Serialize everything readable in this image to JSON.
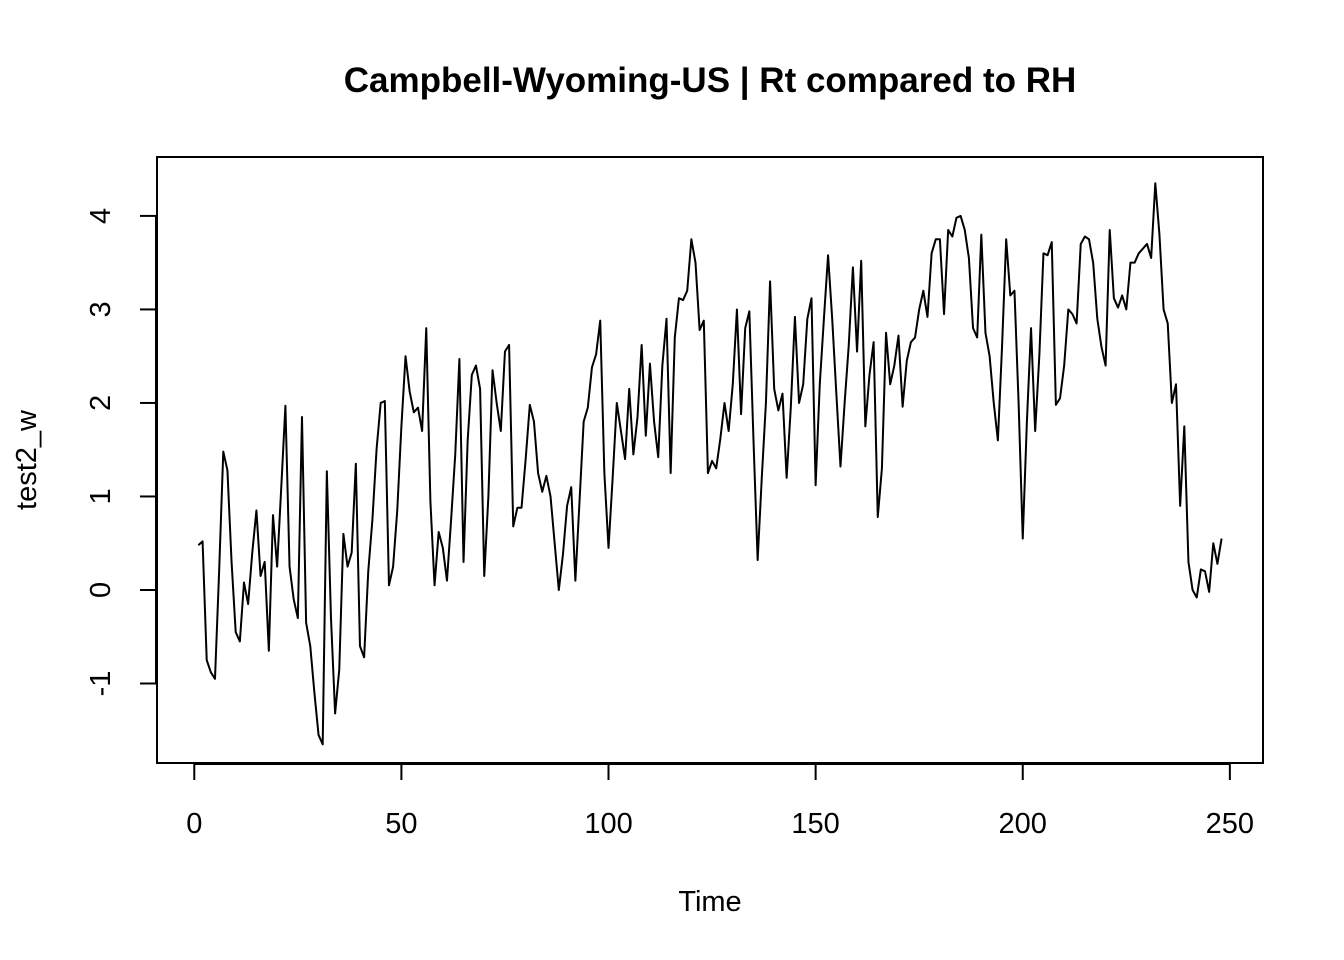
{
  "chart_data": {
    "type": "line",
    "title": "Campbell-Wyoming-US | Rt compared to RH",
    "xlabel": "Time",
    "ylabel": "test2_w",
    "xlim": [
      -9,
      258
    ],
    "ylim": [
      -1.85,
      4.63
    ],
    "xticks": [
      0,
      50,
      100,
      150,
      200,
      250
    ],
    "yticks": [
      -1,
      0,
      1,
      2,
      3,
      4
    ],
    "grid": false,
    "series": [
      {
        "x_start": 1,
        "values": [
          0.48,
          0.52,
          -0.75,
          -0.88,
          -0.95,
          0.2,
          1.48,
          1.28,
          0.3,
          -0.45,
          -0.55,
          0.08,
          -0.15,
          0.4,
          0.85,
          0.15,
          0.3,
          -0.65,
          0.8,
          0.25,
          1.1,
          1.97,
          0.25,
          -0.1,
          -0.3,
          1.85,
          -0.35,
          -0.6,
          -1.1,
          -1.55,
          -1.65,
          1.27,
          -0.3,
          -1.32,
          -0.85,
          0.6,
          0.25,
          0.4,
          1.35,
          -0.6,
          -0.72,
          0.2,
          0.75,
          1.5,
          2.0,
          2.02,
          0.05,
          0.25,
          0.85,
          1.75,
          2.5,
          2.12,
          1.9,
          1.95,
          1.7,
          2.8,
          0.95,
          0.05,
          0.62,
          0.45,
          0.1,
          0.75,
          1.45,
          2.47,
          0.3,
          1.6,
          2.3,
          2.4,
          2.15,
          0.15,
          1.0,
          2.35,
          2.0,
          1.7,
          2.55,
          2.62,
          0.68,
          0.88,
          0.88,
          1.4,
          1.98,
          1.8,
          1.25,
          1.05,
          1.22,
          1.0,
          0.5,
          0.0,
          0.38,
          0.9,
          1.1,
          0.1,
          0.95,
          1.8,
          1.95,
          2.38,
          2.52,
          2.88,
          1.25,
          0.45,
          1.2,
          2.0,
          1.7,
          1.4,
          2.15,
          1.45,
          1.85,
          2.62,
          1.65,
          2.42,
          1.8,
          1.42,
          2.4,
          2.9,
          1.25,
          2.7,
          3.12,
          3.1,
          3.2,
          3.75,
          3.5,
          2.78,
          2.88,
          1.25,
          1.38,
          1.3,
          1.62,
          2.0,
          1.7,
          2.2,
          3.0,
          1.88,
          2.8,
          2.98,
          1.6,
          0.32,
          1.2,
          2.0,
          3.3,
          2.15,
          1.92,
          2.1,
          1.2,
          1.95,
          2.92,
          2.0,
          2.2,
          2.9,
          3.12,
          1.12,
          2.2,
          2.9,
          3.58,
          2.9,
          2.1,
          1.32,
          2.0,
          2.62,
          3.45,
          2.55,
          3.52,
          1.75,
          2.3,
          2.65,
          0.78,
          1.3,
          2.75,
          2.2,
          2.4,
          2.72,
          1.96,
          2.45,
          2.65,
          2.7,
          3.0,
          3.2,
          2.92,
          3.6,
          3.75,
          3.75,
          2.95,
          3.85,
          3.78,
          3.98,
          4.0,
          3.85,
          3.55,
          2.8,
          2.7,
          3.8,
          2.75,
          2.5,
          2.0,
          1.6,
          2.6,
          3.75,
          3.15,
          3.2,
          2.0,
          0.55,
          1.8,
          2.8,
          1.7,
          2.5,
          3.6,
          3.58,
          3.72,
          1.98,
          2.05,
          2.4,
          3.0,
          2.95,
          2.85,
          3.7,
          3.78,
          3.75,
          3.5,
          2.9,
          2.6,
          2.4,
          3.85,
          3.12,
          3.02,
          3.15,
          3.0,
          3.5,
          3.5,
          3.6,
          3.65,
          3.7,
          3.55,
          4.35,
          3.8,
          3.0,
          2.85,
          2.0,
          2.2,
          0.9,
          1.75,
          0.3,
          0.0,
          -0.08,
          0.22,
          0.2,
          -0.02,
          0.5,
          0.28,
          0.55
        ]
      }
    ]
  }
}
